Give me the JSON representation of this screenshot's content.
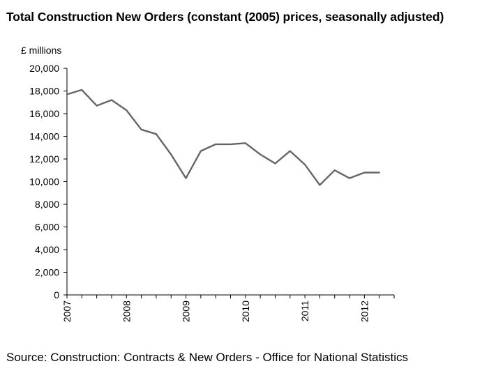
{
  "chart_data": {
    "type": "line",
    "title": "Total Construction New Orders (constant (2005) prices, seasonally adjusted)",
    "ylabel": "£ millions",
    "xlabel": "",
    "ylim": [
      0,
      20000
    ],
    "y_ticks": [
      "0",
      "2,000",
      "4,000",
      "6,000",
      "8,000",
      "10,000",
      "12,000",
      "14,000",
      "16,000",
      "18,000",
      "20,000"
    ],
    "y_tick_values": [
      0,
      2000,
      4000,
      6000,
      8000,
      10000,
      12000,
      14000,
      16000,
      18000,
      20000
    ],
    "x_tick_labels": [
      "2007",
      "2008",
      "2009",
      "2010",
      "2011",
      "2012"
    ],
    "x_tick_positions": [
      0,
      4,
      8,
      12,
      16,
      20
    ],
    "x": [
      "2007 Q1",
      "2007 Q2",
      "2007 Q3",
      "2007 Q4",
      "2008 Q1",
      "2008 Q2",
      "2008 Q3",
      "2008 Q4",
      "2009 Q1",
      "2009 Q2",
      "2009 Q3",
      "2009 Q4",
      "2010 Q1",
      "2010 Q2",
      "2010 Q3",
      "2010 Q4",
      "2011 Q1",
      "2011 Q2",
      "2011 Q3",
      "2011 Q4",
      "2012 Q1",
      "2012 Q2"
    ],
    "series": [
      {
        "values": [
          17700,
          18100,
          16700,
          17200,
          16300,
          14600,
          14200,
          12400,
          10300,
          12700,
          13300,
          13300,
          13400,
          12400,
          11600,
          12700,
          11500,
          9700,
          11000,
          10300,
          10800,
          10800
        ]
      }
    ],
    "grid": false,
    "line_color": "#666666"
  },
  "source": "Source: Construction: Contracts & New Orders - Office for National Statistics"
}
